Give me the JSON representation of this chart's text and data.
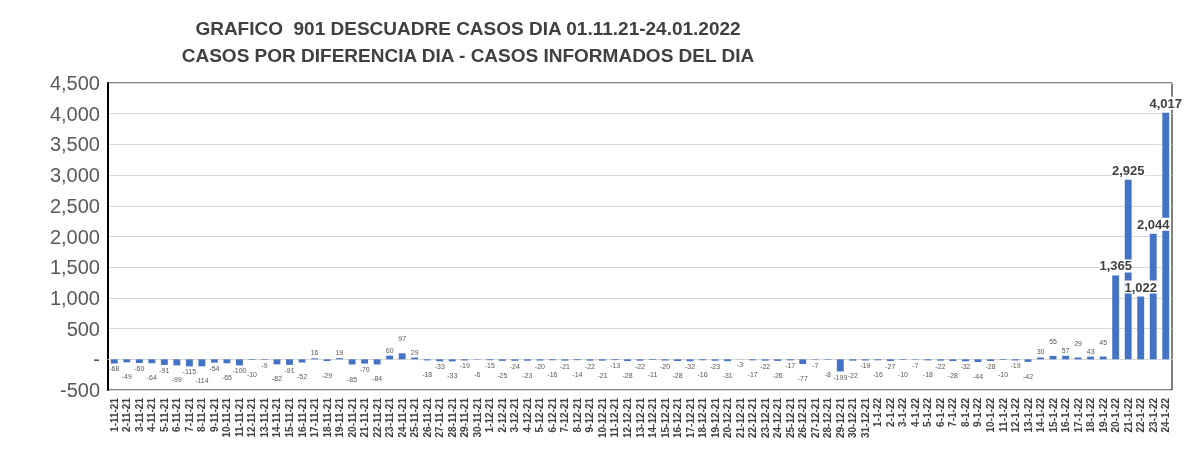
{
  "chart_data": {
    "type": "bar",
    "title": "GRAFICO  901 DESCUADRE CASOS DIA 01.11.21-24.01.2022",
    "subtitle": "CASOS POR DIFERENCIA DIA - CASOS INFORMADOS DEL DIA",
    "categories": [
      "1-11-21",
      "2-11-21",
      "3-11-21",
      "4-11-21",
      "5-11-21",
      "6-11-21",
      "7-11-21",
      "8-11-21",
      "9-11-21",
      "10-11-21",
      "11-11-21",
      "12-11-21",
      "13-11-21",
      "14-11-21",
      "15-11-21",
      "16-11-21",
      "17-11-21",
      "18-11-21",
      "19-11-21",
      "20-11-21",
      "21-11-21",
      "22-11-21",
      "23-11-21",
      "24-11-21",
      "25-11-21",
      "26-11-21",
      "27-11-21",
      "28-11-21",
      "29-11-21",
      "30-11-21",
      "1-12-21",
      "2-12-21",
      "3-12-21",
      "4-12-21",
      "5-12-21",
      "6-12-21",
      "7-12-21",
      "8-12-21",
      "9-12-21",
      "10-12-21",
      "11-12-21",
      "12-12-21",
      "13-12-21",
      "14-12-21",
      "15-12-21",
      "16-12-21",
      "17-12-21",
      "18-12-21",
      "19-12-21",
      "20-12-21",
      "21-12-21",
      "22-12-21",
      "23-12-21",
      "24-12-21",
      "25-12-21",
      "26-12-21",
      "27-12-21",
      "28-12-21",
      "29-12-21",
      "30-12-21",
      "31-12-21",
      "1-1-22",
      "2-1-22",
      "3-1-22",
      "4-1-22",
      "5-1-22",
      "6-1-22",
      "7-1-22",
      "8-1-22",
      "9-1-22",
      "10-1-22",
      "11-1-22",
      "12-1-22",
      "13-1-22",
      "14-1-22",
      "15-1-22",
      "16-1-22",
      "17-1-22",
      "18-1-22",
      "19-1-22",
      "20-1-22",
      "21-1-22",
      "22-1-22",
      "23-1-22",
      "24-1-22"
    ],
    "values": [
      -68,
      -49,
      -60,
      -64,
      -91,
      -99,
      -115,
      -114,
      -54,
      -65,
      -100,
      -10,
      -9,
      -82,
      -91,
      -52,
      16,
      -29,
      19,
      -85,
      -70,
      -84,
      60,
      97,
      29,
      -18,
      -33,
      -33,
      -19,
      -6,
      -15,
      -25,
      -24,
      -23,
      -20,
      -16,
      -21,
      -14,
      -22,
      -21,
      -13,
      -28,
      -22,
      -11,
      -20,
      -28,
      -32,
      -16,
      -23,
      -31,
      -3,
      -17,
      -22,
      -26,
      -17,
      -77,
      -7,
      -8,
      -199,
      -22,
      -19,
      -16,
      -27,
      -10,
      -7,
      -18,
      -22,
      -28,
      -32,
      -44,
      -28,
      -10,
      -19,
      -42,
      30,
      55,
      57,
      29,
      43,
      45,
      1365,
      2925,
      1022,
      2044,
      4017
    ],
    "value_labels": [
      "-68",
      "-49",
      "-60",
      "-64",
      "-91",
      "-99",
      "-115",
      "-114",
      "-54",
      "-65",
      "-100",
      "-10",
      "-9",
      "-82",
      "-91",
      "-52",
      "16",
      "-29",
      "19",
      "-85",
      "-70",
      "-84",
      "60",
      "97",
      "29",
      "-18",
      "-33",
      "-33",
      "-19",
      "-6",
      "-15",
      "-25",
      "-24",
      "-23",
      "-20",
      "-16",
      "-21",
      "-14",
      "-22",
      "-21",
      "-13",
      "-28",
      "-22",
      "-11",
      "-20",
      "-28",
      "-32",
      "-16",
      "-23",
      "-31",
      "-3",
      "-17",
      "-22",
      "-26",
      "-17",
      "-77",
      "-7",
      "-8",
      "-199",
      "-22",
      "-19",
      "-16",
      "-27",
      "-10",
      "-7",
      "-18",
      "-22",
      "-28",
      "-32",
      "-44",
      "-28",
      "-10",
      "-19",
      "-42",
      "30",
      "55",
      "57",
      "29",
      "43",
      "45",
      "1,365",
      "2,925",
      "1,022",
      "2,044",
      "4,017"
    ],
    "color": "#4472c4",
    "grid": "y",
    "ylim": [
      -500,
      4500
    ],
    "yticks": [
      -500,
      {
        "value": 0,
        "label": "-"
      },
      500,
      {
        "value": 1000,
        "label": "1,000"
      },
      {
        "value": 1500,
        "label": "1,500"
      },
      {
        "value": 2000,
        "label": "2,000"
      },
      {
        "value": 2500,
        "label": "2,500"
      },
      {
        "value": 3000,
        "label": "3,000"
      },
      {
        "value": 3500,
        "label": "3,500"
      },
      {
        "value": 4000,
        "label": "4,000"
      },
      {
        "value": 4500,
        "label": "4,500"
      }
    ]
  }
}
